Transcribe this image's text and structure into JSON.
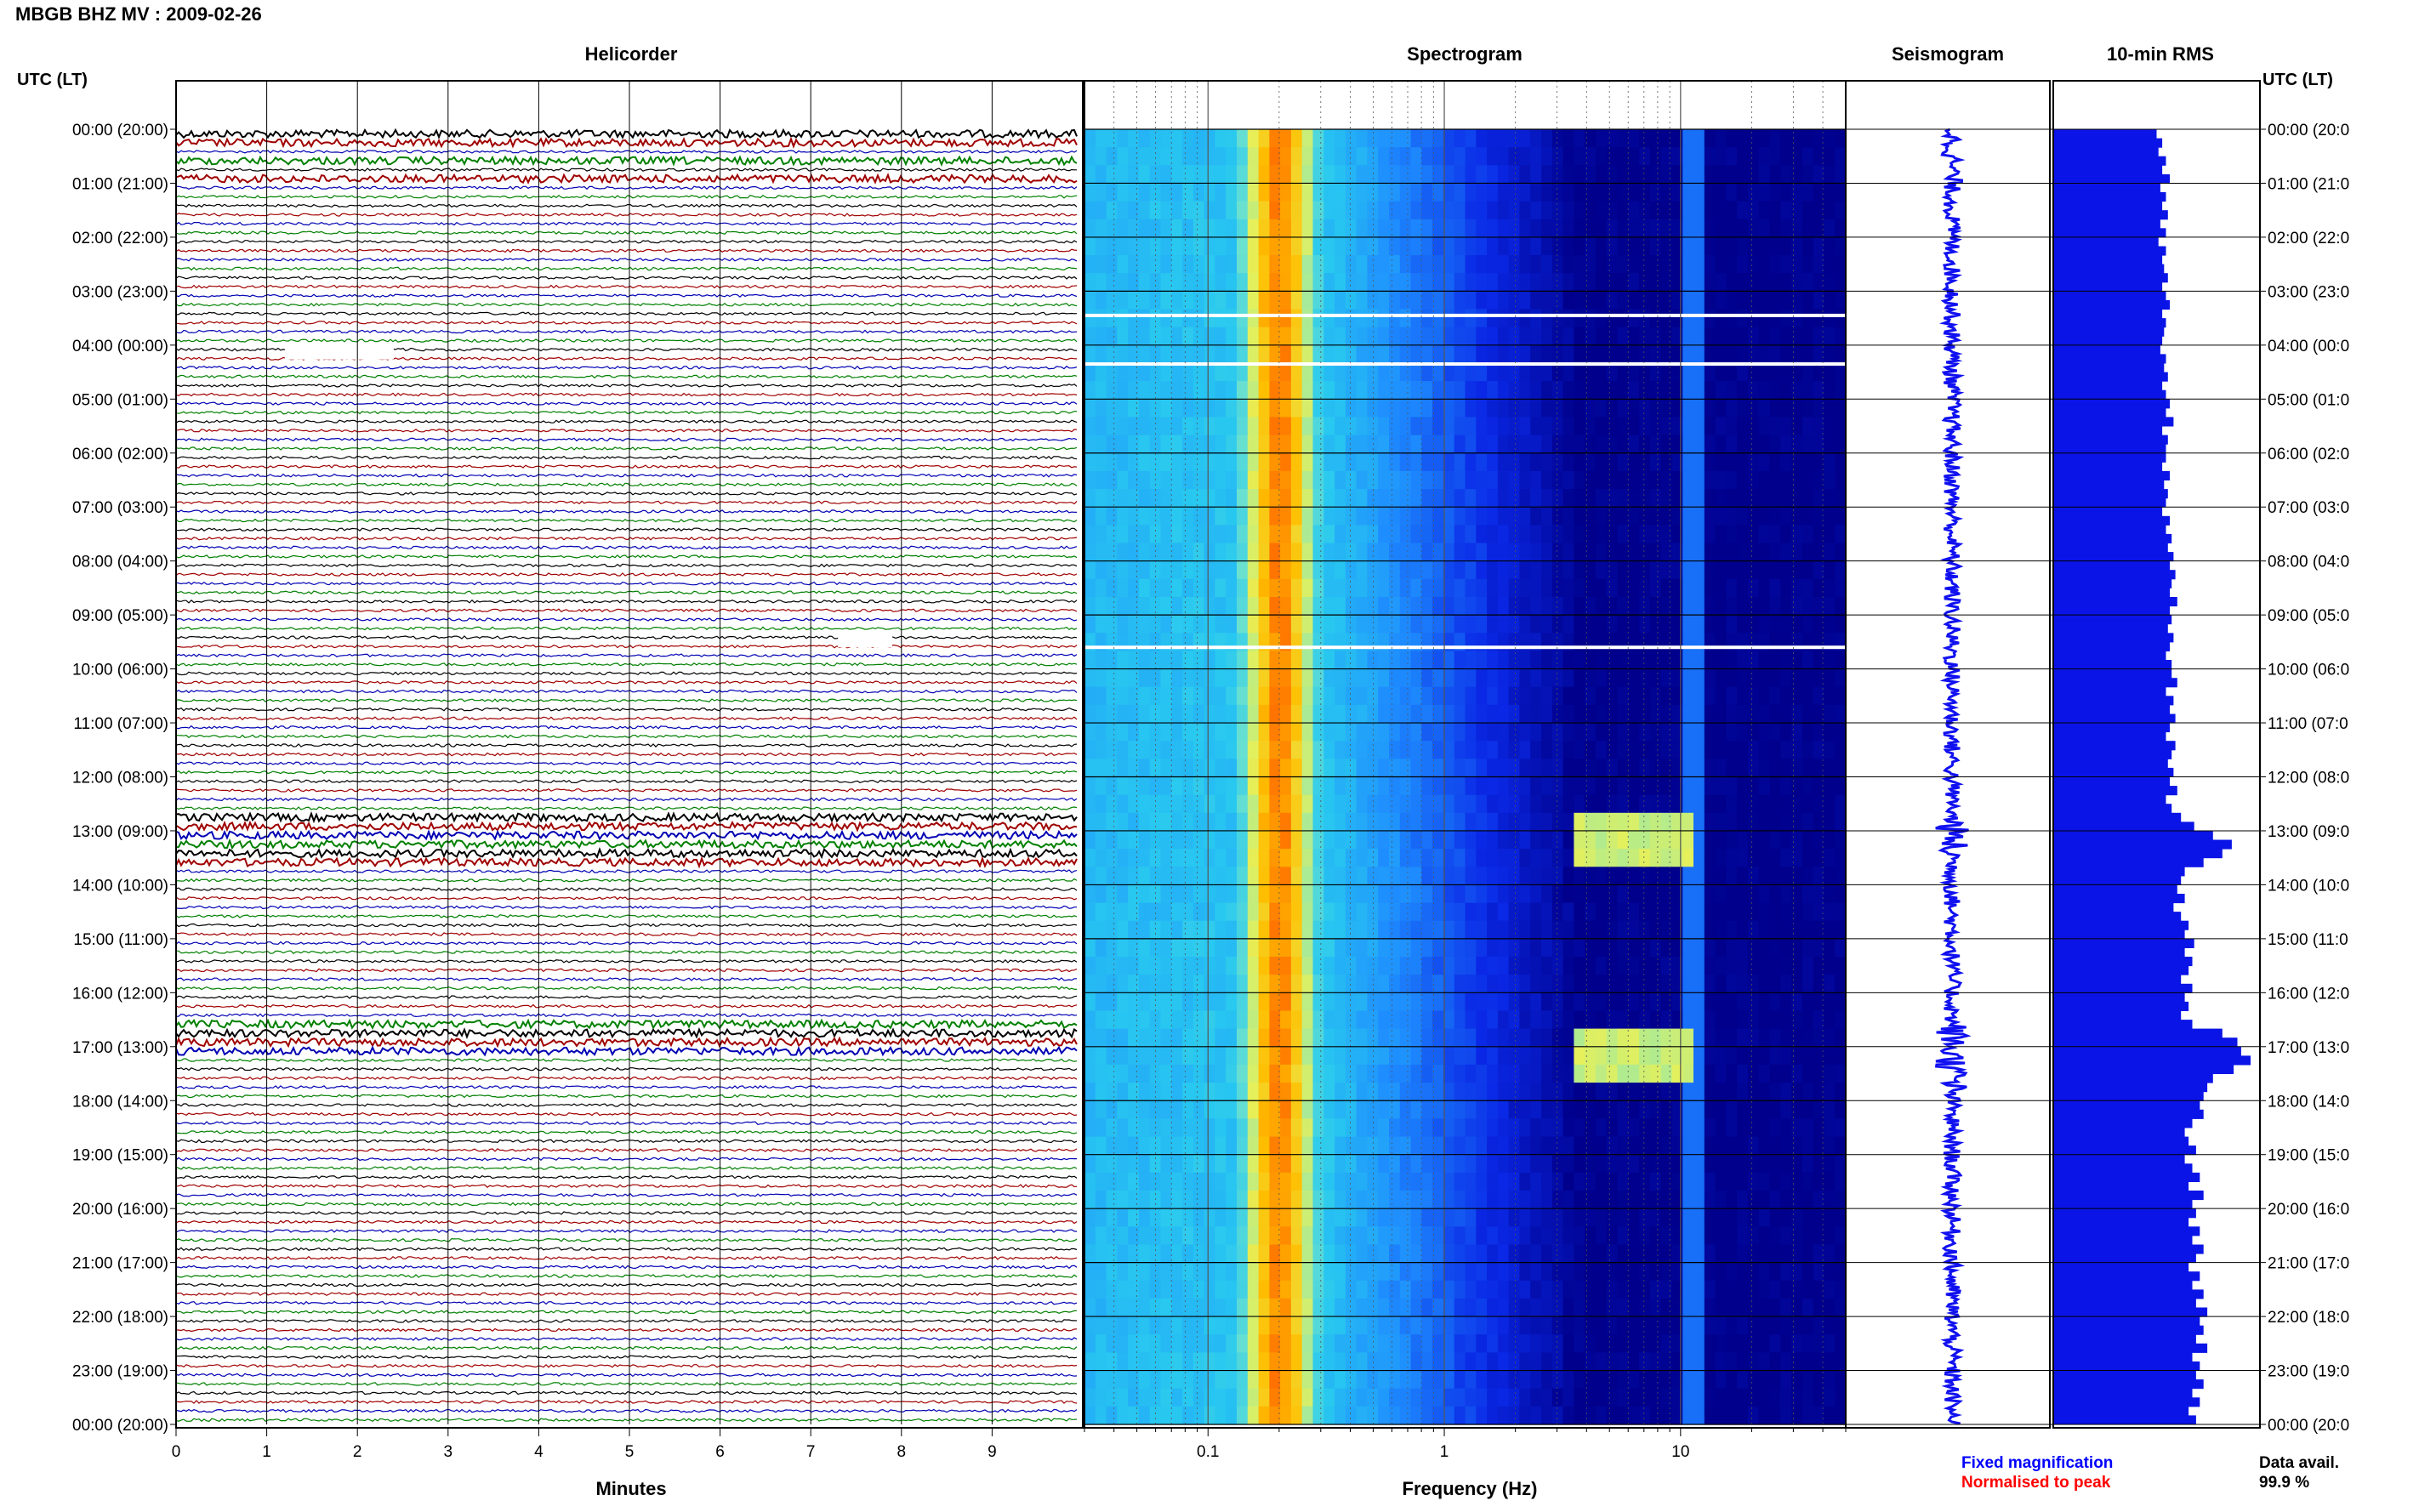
{
  "title": "MBGB BHZ MV : 2009-02-26",
  "tz_label_left": "UTC (LT)",
  "tz_label_right": "UTC (LT)",
  "panels": {
    "helicorder": "Helicorder",
    "spectrogram": "Spectrogram",
    "seismogram": "Seismogram",
    "rms": "10-min RMS"
  },
  "time_labels": [
    "00:00 (20:00)",
    "01:00 (21:00)",
    "02:00 (22:00)",
    "03:00 (23:00)",
    "04:00 (00:00)",
    "05:00 (01:00)",
    "06:00 (02:00)",
    "07:00 (03:00)",
    "08:00 (04:00)",
    "09:00 (05:00)",
    "10:00 (06:00)",
    "11:00 (07:00)",
    "12:00 (08:00)",
    "13:00 (09:00)",
    "14:00 (10:00)",
    "15:00 (11:00)",
    "16:00 (12:00)",
    "17:00 (13:00)",
    "18:00 (14:00)",
    "19:00 (15:00)",
    "20:00 (16:00)",
    "21:00 (17:00)",
    "22:00 (18:00)",
    "23:00 (19:00)",
    "00:00 (20:00)"
  ],
  "time_labels_right": [
    "00:00 (20:0",
    "01:00 (21:0",
    "02:00 (22:0",
    "03:00 (23:0",
    "04:00 (00:0",
    "05:00 (01:0",
    "06:00 (02:0",
    "07:00 (03:0",
    "08:00 (04:0",
    "09:00 (05:0",
    "10:00 (06:0",
    "11:00 (07:0",
    "12:00 (08:0",
    "13:00 (09:0",
    "14:00 (10:0",
    "15:00 (11:0",
    "16:00 (12:0",
    "17:00 (13:0",
    "18:00 (14:0",
    "19:00 (15:0",
    "20:00 (16:0",
    "21:00 (17:0",
    "22:00 (18:0",
    "23:00 (19:0",
    "00:00 (20:0"
  ],
  "xaxis": {
    "minutes_label": "Minutes",
    "minutes_ticks": [
      "0",
      "1",
      "2",
      "3",
      "4",
      "5",
      "6",
      "7",
      "8",
      "9"
    ],
    "frequency_label": "Frequency (Hz)",
    "frequency_ticks": [
      "0.1",
      "1",
      "10"
    ]
  },
  "legend": {
    "fixed": "Fixed magnification",
    "fixed_color": "#0000ff",
    "normalised": "Normalised to peak",
    "normalised_color": "#ff0000"
  },
  "data_avail": {
    "label": "Data avail.",
    "value": "99.9 %"
  },
  "colors": {
    "trace_cycle": [
      "#000000",
      "#a00000",
      "#0000b4",
      "#008000"
    ],
    "spectrogram_low": "#00008c",
    "spectrogram_high": "#ff4000",
    "rms_fill": "#0a14e6",
    "seismogram": "#1010f0"
  },
  "chart_data": [
    {
      "type": "line",
      "title": "Helicorder",
      "xlabel": "Minutes",
      "xlim": [
        0,
        10
      ],
      "rows_per_hour": 6,
      "hours": 24,
      "strong_rows": [
        0,
        1,
        3,
        5,
        76,
        77,
        78,
        79,
        80,
        81,
        99,
        100,
        101,
        102
      ],
      "gaps": [
        {
          "row": 24,
          "x": [
            1.2,
            2.4
          ]
        },
        {
          "row": 56,
          "x": [
            7.3,
            7.9
          ]
        }
      ]
    },
    {
      "type": "heatmap",
      "title": "Spectrogram",
      "xlabel": "Frequency (Hz)",
      "xscale": "log",
      "xlim": [
        0.03,
        50
      ],
      "peak_frequency_hz": 0.2,
      "events_hours": [
        [
          12.8,
          13.5
        ],
        [
          16.6,
          17.8
        ]
      ],
      "gap_hours": [
        3.45,
        4.35,
        9.6
      ]
    },
    {
      "type": "bar",
      "title": "10-min RMS",
      "orientation": "horizontal",
      "values": [
        0.55,
        0.58,
        0.56,
        0.6,
        0.58,
        0.62,
        0.57,
        0.6,
        0.58,
        0.61,
        0.57,
        0.6,
        0.56,
        0.6,
        0.58,
        0.59,
        0.61,
        0.58,
        0.6,
        0.62,
        0.58,
        0.6,
        0.59,
        0.58,
        0.57,
        0.6,
        0.59,
        0.61,
        0.58,
        0.6,
        0.62,
        0.6,
        0.64,
        0.58,
        0.61,
        0.6,
        0.6,
        0.58,
        0.62,
        0.59,
        0.61,
        0.6,
        0.58,
        0.62,
        0.6,
        0.63,
        0.61,
        0.64,
        0.62,
        0.65,
        0.63,
        0.62,
        0.66,
        0.62,
        0.63,
        0.61,
        0.64,
        0.62,
        0.6,
        0.63,
        0.63,
        0.66,
        0.6,
        0.64,
        0.62,
        0.65,
        0.62,
        0.6,
        0.65,
        0.63,
        0.61,
        0.64,
        0.62,
        0.66,
        0.6,
        0.63,
        0.68,
        0.75,
        0.85,
        0.95,
        0.9,
        0.8,
        0.7,
        0.68,
        0.66,
        0.7,
        0.64,
        0.68,
        0.72,
        0.7,
        0.75,
        0.7,
        0.74,
        0.72,
        0.68,
        0.74,
        0.7,
        0.72,
        0.68,
        0.74,
        0.9,
        0.98,
        1.0,
        1.05,
        0.96,
        0.85,
        0.82,
        0.8,
        0.78,
        0.8,
        0.74,
        0.7,
        0.72,
        0.76,
        0.7,
        0.74,
        0.78,
        0.72,
        0.8,
        0.74,
        0.76,
        0.72,
        0.78,
        0.74,
        0.8,
        0.76,
        0.72,
        0.78,
        0.74,
        0.8,
        0.76,
        0.82,
        0.78,
        0.8,
        0.76,
        0.82,
        0.74,
        0.78,
        0.76,
        0.8,
        0.74,
        0.78,
        0.72,
        0.76
      ],
      "xlim": [
        0,
        1.1
      ]
    }
  ]
}
